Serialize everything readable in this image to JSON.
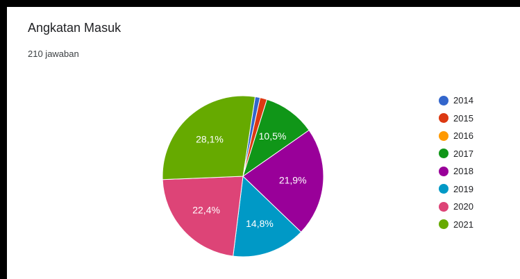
{
  "title": "Angkatan Masuk",
  "response_count": "210 jawaban",
  "chart_data": {
    "type": "pie",
    "categories": [
      "2014",
      "2015",
      "2016",
      "2017",
      "2018",
      "2019",
      "2020",
      "2021"
    ],
    "values": [
      1.0,
      1.4,
      0,
      10.5,
      21.9,
      14.8,
      22.4,
      28.1
    ],
    "data_labels": [
      "",
      "",
      "",
      "10,5%",
      "21,9%",
      "14,8%",
      "22,4%",
      "28,1%"
    ],
    "colors": [
      "#3366cc",
      "#dc3912",
      "#ff9900",
      "#109618",
      "#990099",
      "#0099c6",
      "#dd4477",
      "#66aa00"
    ],
    "legend_position": "right"
  }
}
